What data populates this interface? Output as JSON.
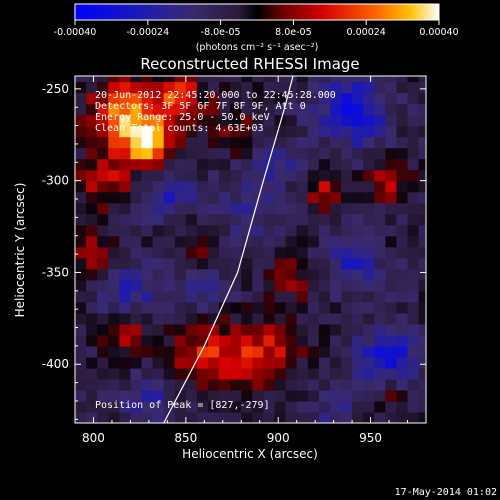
{
  "chart_data": {
    "type": "heatmap",
    "title": "Reconstructed RHESSI Image",
    "xlabel": "Heliocentric X (arcsec)",
    "ylabel": "Heliocentric Y (arcsec)",
    "xlim": [
      790,
      980
    ],
    "ylim": [
      -432,
      -243
    ],
    "x_ticks": [
      800,
      850,
      900,
      950
    ],
    "y_ticks": [
      -250,
      -300,
      -350,
      -400
    ],
    "colorbar": {
      "range": [
        -0.0004,
        0.0004
      ],
      "tick_values": [
        -0.0004,
        -0.00024,
        -8e-05,
        8e-05,
        0.00024,
        0.0004
      ],
      "tick_labels": [
        "-0.00040",
        "-0.00024",
        "-8.0e-05",
        "8.0e-05",
        "0.00024",
        "0.00040"
      ],
      "unit_label": "(photons cm⁻² s⁻¹ asec⁻²)"
    },
    "annotations": [
      "20-Jun-2012 22:45:20.000 to 22:45:28.000",
      "Detectors: 3F 5F 6F 7F 8F 9F, Att 0",
      "Energy Range: 25.0 - 50.0 keV",
      "Clean    Total counts: 4.63E+03"
    ],
    "peak_label": "Position of Peak = [827,-279]",
    "peak": {
      "x": 827,
      "y": -279
    },
    "limb_curve": [
      [
        838,
        -432
      ],
      [
        860,
        -390
      ],
      [
        878,
        -350
      ],
      [
        892,
        -300
      ],
      [
        903,
        -262
      ],
      [
        908,
        -243
      ]
    ],
    "blobs": [
      {
        "x": 828,
        "y": -279,
        "r": 10,
        "v": 0.0004
      },
      {
        "x": 815,
        "y": -262,
        "r": 12,
        "v": 0.0003
      },
      {
        "x": 846,
        "y": -255,
        "r": 10,
        "v": 0.00026
      },
      {
        "x": 806,
        "y": -300,
        "r": 10,
        "v": 0.00018
      },
      {
        "x": 800,
        "y": -340,
        "r": 9,
        "v": 0.00016
      },
      {
        "x": 818,
        "y": -383,
        "r": 9,
        "v": 0.00016
      },
      {
        "x": 858,
        "y": -395,
        "r": 14,
        "v": 0.00018
      },
      {
        "x": 882,
        "y": -396,
        "r": 13,
        "v": 0.00016
      },
      {
        "x": 900,
        "y": -388,
        "r": 10,
        "v": 0.00014
      },
      {
        "x": 907,
        "y": -352,
        "r": 9,
        "v": 0.00012
      },
      {
        "x": 925,
        "y": -305,
        "r": 7,
        "v": 0.00018
      },
      {
        "x": 960,
        "y": -300,
        "r": 8,
        "v": 0.00016
      },
      {
        "x": 956,
        "y": -338,
        "r": 6,
        "v": 0.00012
      },
      {
        "x": 875,
        "y": -272,
        "r": 9,
        "v": 0.00012
      },
      {
        "x": 860,
        "y": -333,
        "r": 7,
        "v": 0.00012
      },
      {
        "x": 960,
        "y": -415,
        "r": 7,
        "v": 0.0001
      },
      {
        "x": 900,
        "y": -290,
        "r": 8,
        "v": -0.00014
      },
      {
        "x": 940,
        "y": -262,
        "r": 14,
        "v": -0.00024
      },
      {
        "x": 945,
        "y": -342,
        "r": 12,
        "v": -0.0002
      },
      {
        "x": 840,
        "y": -307,
        "r": 10,
        "v": -0.00016
      },
      {
        "x": 820,
        "y": -360,
        "r": 12,
        "v": -0.00016
      },
      {
        "x": 960,
        "y": -396,
        "r": 12,
        "v": -0.00024
      },
      {
        "x": 832,
        "y": -420,
        "r": 12,
        "v": -0.00014
      },
      {
        "x": 930,
        "y": -424,
        "r": 9,
        "v": -0.0001
      },
      {
        "x": 885,
        "y": -315,
        "r": 14,
        "v": -0.0001
      },
      {
        "x": 860,
        "y": -360,
        "r": 12,
        "v": -8e-05
      }
    ]
  },
  "footer": {
    "date": "17-May-2014 01:02"
  }
}
